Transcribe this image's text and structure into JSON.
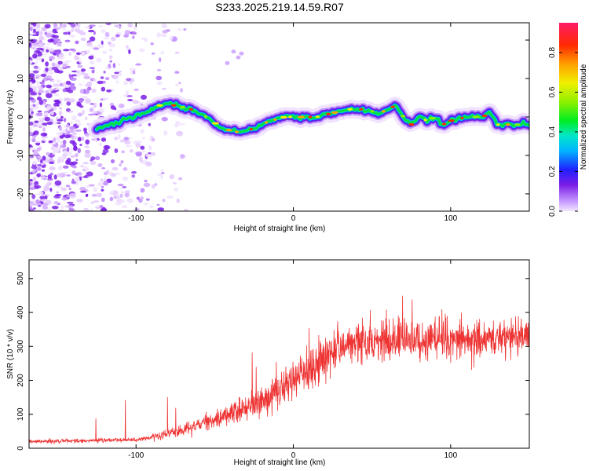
{
  "title": "S233.2025.219.14.59.R07",
  "colorbar": {
    "label": "Normalized spectral amplitude",
    "ticks": [
      "0.0",
      "0.2",
      "0.4",
      "0.6",
      "0.8"
    ],
    "range": [
      0,
      0.95
    ]
  },
  "chart_data": [
    {
      "type": "heatmap",
      "xlabel": "Height of straight line (km)",
      "ylabel": "Frequency (Hz)",
      "xlim": [
        -168,
        150
      ],
      "ylim": [
        -24.5,
        24.5
      ],
      "xticks": [
        -100,
        0,
        100
      ],
      "xtick_labels": [
        "-100",
        "0",
        "100"
      ],
      "yticks": [
        -20,
        -10,
        0,
        10,
        20
      ],
      "ytick_labels": [
        "-20",
        "-10",
        "0",
        "10",
        "20"
      ],
      "ridge": {
        "x": [
          -125,
          -110,
          -95,
          -85,
          -75,
          -65,
          -55,
          -45,
          -35,
          -25,
          -15,
          -5,
          5,
          15,
          25,
          35,
          45,
          55,
          65,
          70,
          75,
          80,
          85,
          90,
          95,
          100,
          110,
          120,
          125,
          130,
          140,
          150
        ],
        "freq": [
          -3,
          -1,
          1,
          3,
          3,
          2,
          0,
          -3,
          -4,
          -3,
          -1,
          0,
          0,
          0,
          1,
          2,
          2,
          1,
          3,
          0,
          -2,
          0,
          -1,
          0,
          -2,
          -1,
          0,
          0,
          1,
          -2,
          -2,
          -2
        ]
      }
    },
    {
      "type": "line",
      "xlabel": "Height of straight line (km)",
      "ylabel": "SNR (10 * v/v)",
      "xlim": [
        -168,
        150
      ],
      "ylim": [
        0,
        555
      ],
      "xticks": [
        -100,
        0,
        100
      ],
      "xtick_labels": [
        "-100",
        "0",
        "100"
      ],
      "yticks": [
        0,
        100,
        200,
        300,
        400,
        500
      ],
      "ytick_labels": [
        "0",
        "100",
        "200",
        "300",
        "400",
        "500"
      ],
      "color": "#ee3333",
      "trend": {
        "x": [
          -168,
          -100,
          -85,
          -70,
          -50,
          -40,
          -30,
          -20,
          -10,
          0,
          10,
          20,
          30,
          40,
          60,
          80,
          100,
          120,
          150
        ],
        "y": [
          20,
          25,
          35,
          55,
          85,
          100,
          120,
          140,
          170,
          195,
          225,
          270,
          300,
          315,
          315,
          320,
          320,
          320,
          330
        ]
      }
    }
  ]
}
